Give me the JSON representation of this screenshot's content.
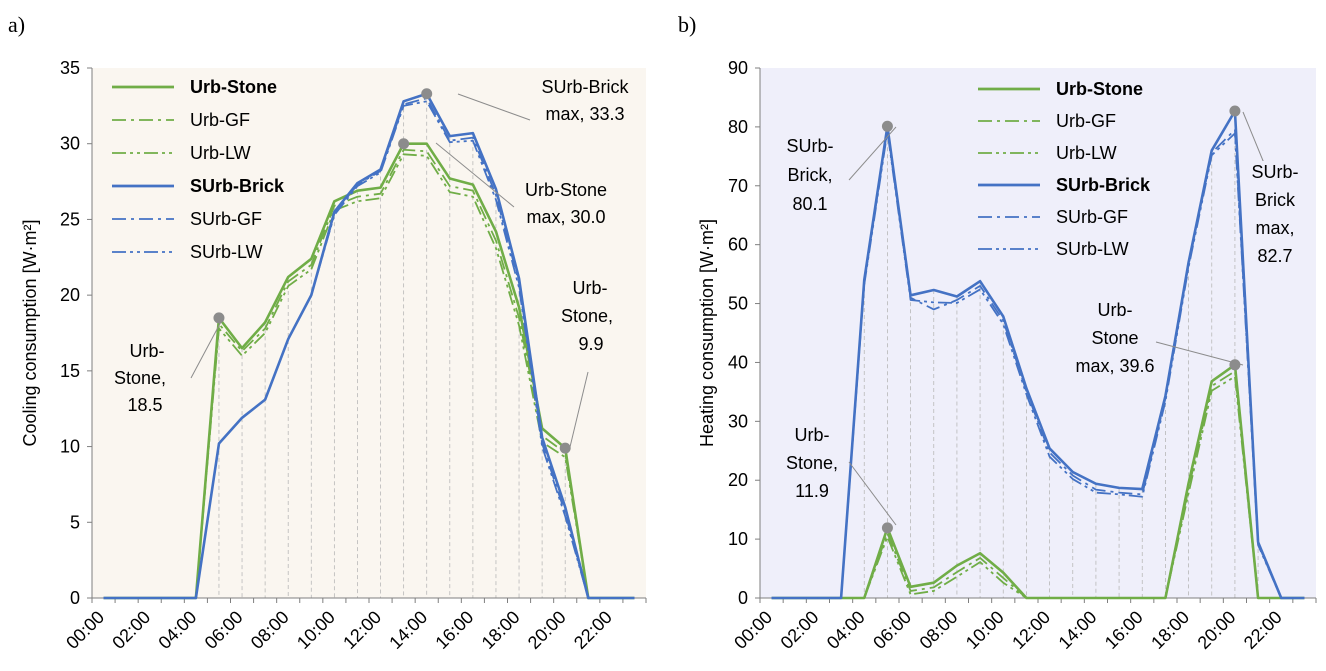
{
  "chart_data": [
    {
      "type": "line",
      "panel_label": "a)",
      "ylabel": "Cooling consumption [W·m²]",
      "ylim": [
        0,
        35
      ],
      "yticks": [
        0,
        5,
        10,
        15,
        20,
        25,
        30,
        35
      ],
      "x": [
        "00:00",
        "01:00",
        "02:00",
        "03:00",
        "04:00",
        "05:00",
        "06:00",
        "07:00",
        "08:00",
        "09:00",
        "10:00",
        "11:00",
        "12:00",
        "13:00",
        "14:00",
        "15:00",
        "16:00",
        "17:00",
        "18:00",
        "19:00",
        "20:00",
        "21:00",
        "22:00",
        "23:00"
      ],
      "xtick_labels": [
        "00:00",
        "02:00",
        "04:00",
        "06:00",
        "08:00",
        "10:00",
        "12:00",
        "14:00",
        "16:00",
        "18:00",
        "20:00",
        "22:00"
      ],
      "background": "#faf6f0",
      "legend_position": "top-left",
      "series": [
        {
          "name": "Urb-Stone",
          "style": "solid",
          "color": "#70ad47",
          "bold": true,
          "values": [
            0,
            0,
            0,
            0,
            0,
            18.5,
            16.5,
            18.2,
            21.2,
            22.4,
            26.2,
            26.9,
            27.1,
            30.0,
            30.0,
            27.7,
            27.3,
            24.2,
            19.2,
            11.2,
            9.9,
            0,
            0,
            0
          ]
        },
        {
          "name": "Urb-GF",
          "style": "dashdot",
          "color": "#70ad47",
          "bold": false,
          "values": [
            0,
            0,
            0,
            0,
            0,
            18.1,
            16.3,
            17.8,
            20.9,
            22.0,
            25.9,
            26.5,
            26.7,
            29.6,
            29.5,
            27.2,
            26.9,
            23.6,
            18.5,
            10.7,
            9.6,
            0,
            0,
            0
          ]
        },
        {
          "name": "Urb-LW",
          "style": "dashdotdot",
          "color": "#70ad47",
          "bold": false,
          "values": [
            0,
            0,
            0,
            0,
            0,
            17.8,
            16.0,
            17.5,
            20.6,
            21.7,
            25.6,
            26.2,
            26.4,
            29.3,
            29.2,
            26.8,
            26.5,
            23.1,
            18.0,
            10.3,
            9.3,
            0,
            0,
            0
          ]
        },
        {
          "name": "SUrb-Brick",
          "style": "solid",
          "color": "#4472c4",
          "bold": true,
          "values": [
            0,
            0,
            0,
            0,
            0,
            10.2,
            11.9,
            13.1,
            17.1,
            20.0,
            25.5,
            27.4,
            28.3,
            32.8,
            33.3,
            30.5,
            30.7,
            27.0,
            21.1,
            10.6,
            6.0,
            0,
            0,
            0
          ]
        },
        {
          "name": "SUrb-GF",
          "style": "dashdot",
          "color": "#4472c4",
          "bold": false,
          "values": [
            0,
            0,
            0,
            0,
            0,
            10.2,
            11.9,
            13.1,
            17.1,
            20.0,
            25.4,
            27.3,
            28.2,
            32.6,
            33.0,
            30.2,
            30.4,
            26.6,
            20.8,
            10.2,
            5.6,
            0,
            0,
            0
          ]
        },
        {
          "name": "SUrb-LW",
          "style": "dashdotdot",
          "color": "#4472c4",
          "bold": false,
          "values": [
            0,
            0,
            0,
            0,
            0,
            10.2,
            11.9,
            13.1,
            17.1,
            20.0,
            25.3,
            27.2,
            28.1,
            32.5,
            32.8,
            30.1,
            30.2,
            26.3,
            20.5,
            10.0,
            5.4,
            0,
            0,
            0
          ]
        }
      ],
      "markers": [
        {
          "x": "05:00",
          "y": 18.5
        },
        {
          "x": "13:00",
          "y": 30.0
        },
        {
          "x": "14:00",
          "y": 33.3
        },
        {
          "x": "20:00",
          "y": 9.9
        }
      ],
      "annotations": [
        {
          "text": [
            "Urb-",
            "Stone,",
            "18.5"
          ]
        },
        {
          "text": [
            "SUrb-Brick",
            "max, 33.3"
          ]
        },
        {
          "text": [
            "Urb-Stone",
            "max, 30.0"
          ]
        },
        {
          "text": [
            "Urb-",
            "Stone,",
            "9.9"
          ]
        }
      ]
    },
    {
      "type": "line",
      "panel_label": "b)",
      "ylabel": "Heating consumption [W·m²]",
      "ylim": [
        0,
        90
      ],
      "yticks": [
        0,
        10,
        20,
        30,
        40,
        50,
        60,
        70,
        80,
        90
      ],
      "x": [
        "00:00",
        "01:00",
        "02:00",
        "03:00",
        "04:00",
        "05:00",
        "06:00",
        "07:00",
        "08:00",
        "09:00",
        "10:00",
        "11:00",
        "12:00",
        "13:00",
        "14:00",
        "15:00",
        "16:00",
        "17:00",
        "18:00",
        "19:00",
        "20:00",
        "21:00",
        "22:00",
        "23:00"
      ],
      "xtick_labels": [
        "00:00",
        "02:00",
        "04:00",
        "06:00",
        "08:00",
        "10:00",
        "12:00",
        "14:00",
        "16:00",
        "18:00",
        "20:00",
        "22:00"
      ],
      "background": "#efeffa",
      "legend_position": "top-center",
      "series": [
        {
          "name": "Urb-Stone",
          "style": "solid",
          "color": "#70ad47",
          "bold": true,
          "values": [
            0,
            0,
            0,
            0,
            0,
            11.9,
            1.9,
            2.6,
            5.5,
            7.6,
            4.3,
            0,
            0,
            0,
            0,
            0,
            0,
            0,
            19.5,
            36.8,
            39.6,
            0,
            0,
            0
          ]
        },
        {
          "name": "Urb-GF",
          "style": "dashdot",
          "color": "#70ad47",
          "bold": false,
          "values": [
            0,
            0,
            0,
            0,
            0,
            11.0,
            1.2,
            1.8,
            4.4,
            6.8,
            3.4,
            0,
            0,
            0,
            0,
            0,
            0,
            0,
            18.6,
            36.0,
            38.5,
            0,
            0,
            0
          ]
        },
        {
          "name": "Urb-LW",
          "style": "dashdotdot",
          "color": "#70ad47",
          "bold": false,
          "values": [
            0,
            0,
            0,
            0,
            0,
            10.4,
            0.6,
            1.2,
            3.6,
            6.1,
            2.6,
            0,
            0,
            0,
            0,
            0,
            0,
            0,
            17.8,
            35.2,
            37.6,
            0,
            0,
            0
          ]
        },
        {
          "name": "SUrb-Brick",
          "style": "solid",
          "color": "#4472c4",
          "bold": true,
          "values": [
            0,
            0,
            0,
            0,
            54.0,
            80.1,
            51.4,
            52.3,
            51.2,
            53.8,
            47.8,
            35.6,
            25.4,
            21.4,
            19.4,
            18.7,
            18.5,
            34.3,
            57.0,
            76.0,
            82.7,
            9.5,
            0,
            0
          ]
        },
        {
          "name": "SUrb-GF",
          "style": "dashdot",
          "color": "#4472c4",
          "bold": false,
          "values": [
            0,
            0,
            0,
            0,
            53.6,
            79.6,
            51.0,
            49.0,
            50.6,
            53.0,
            47.1,
            35.1,
            24.7,
            20.8,
            18.4,
            17.9,
            17.6,
            33.9,
            56.6,
            75.6,
            79.5,
            9.2,
            0,
            0
          ]
        },
        {
          "name": "SUrb-LW",
          "style": "dashdotdot",
          "color": "#4472c4",
          "bold": false,
          "values": [
            0,
            0,
            0,
            0,
            53.2,
            79.2,
            50.6,
            50.2,
            50.1,
            52.4,
            46.5,
            34.6,
            24.0,
            20.2,
            17.9,
            17.6,
            17.2,
            33.4,
            56.2,
            75.2,
            78.9,
            9.0,
            0,
            0
          ]
        }
      ],
      "markers": [
        {
          "x": "05:00",
          "y": 80.1
        },
        {
          "x": "05:00",
          "y": 11.9
        },
        {
          "x": "20:00",
          "y": 82.7
        },
        {
          "x": "20:00",
          "y": 39.6
        }
      ],
      "annotations": [
        {
          "text": [
            "SUrb-",
            "Brick,",
            "80.1"
          ]
        },
        {
          "text": [
            "Urb-",
            "Stone,",
            "11.9"
          ]
        },
        {
          "text": [
            "SUrb-",
            "Brick",
            "max,",
            "82.7"
          ]
        },
        {
          "text": [
            "Urb-",
            "Stone",
            "max, 39.6"
          ]
        }
      ]
    }
  ]
}
